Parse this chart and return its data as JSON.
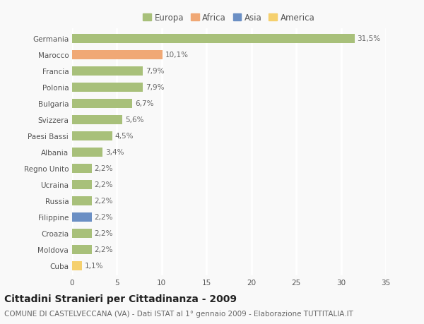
{
  "countries": [
    "Germania",
    "Marocco",
    "Francia",
    "Polonia",
    "Bulgaria",
    "Svizzera",
    "Paesi Bassi",
    "Albania",
    "Regno Unito",
    "Ucraina",
    "Russia",
    "Filippine",
    "Croazia",
    "Moldova",
    "Cuba"
  ],
  "values": [
    31.5,
    10.1,
    7.9,
    7.9,
    6.7,
    5.6,
    4.5,
    3.4,
    2.2,
    2.2,
    2.2,
    2.2,
    2.2,
    2.2,
    1.1
  ],
  "labels": [
    "31,5%",
    "10,1%",
    "7,9%",
    "7,9%",
    "6,7%",
    "5,6%",
    "4,5%",
    "3,4%",
    "2,2%",
    "2,2%",
    "2,2%",
    "2,2%",
    "2,2%",
    "2,2%",
    "1,1%"
  ],
  "continents": [
    "Europa",
    "Africa",
    "Europa",
    "Europa",
    "Europa",
    "Europa",
    "Europa",
    "Europa",
    "Europa",
    "Europa",
    "Europa",
    "Asia",
    "Europa",
    "Europa",
    "America"
  ],
  "continent_colors": {
    "Europa": "#a8c07a",
    "Africa": "#f0a875",
    "Asia": "#6b8fc4",
    "America": "#f5d06e"
  },
  "legend_order": [
    "Europa",
    "Africa",
    "Asia",
    "America"
  ],
  "xlim": [
    0,
    35
  ],
  "xticks": [
    0,
    5,
    10,
    15,
    20,
    25,
    30,
    35
  ],
  "title": "Cittadini Stranieri per Cittadinanza - 2009",
  "subtitle": "COMUNE DI CASTELVECCANA (VA) - Dati ISTAT al 1° gennaio 2009 - Elaborazione TUTTITALIA.IT",
  "background_color": "#f9f9f9",
  "grid_color": "#ffffff",
  "bar_height": 0.55,
  "title_fontsize": 10,
  "subtitle_fontsize": 7.5,
  "label_fontsize": 7.5,
  "tick_fontsize": 7.5,
  "legend_fontsize": 8.5
}
